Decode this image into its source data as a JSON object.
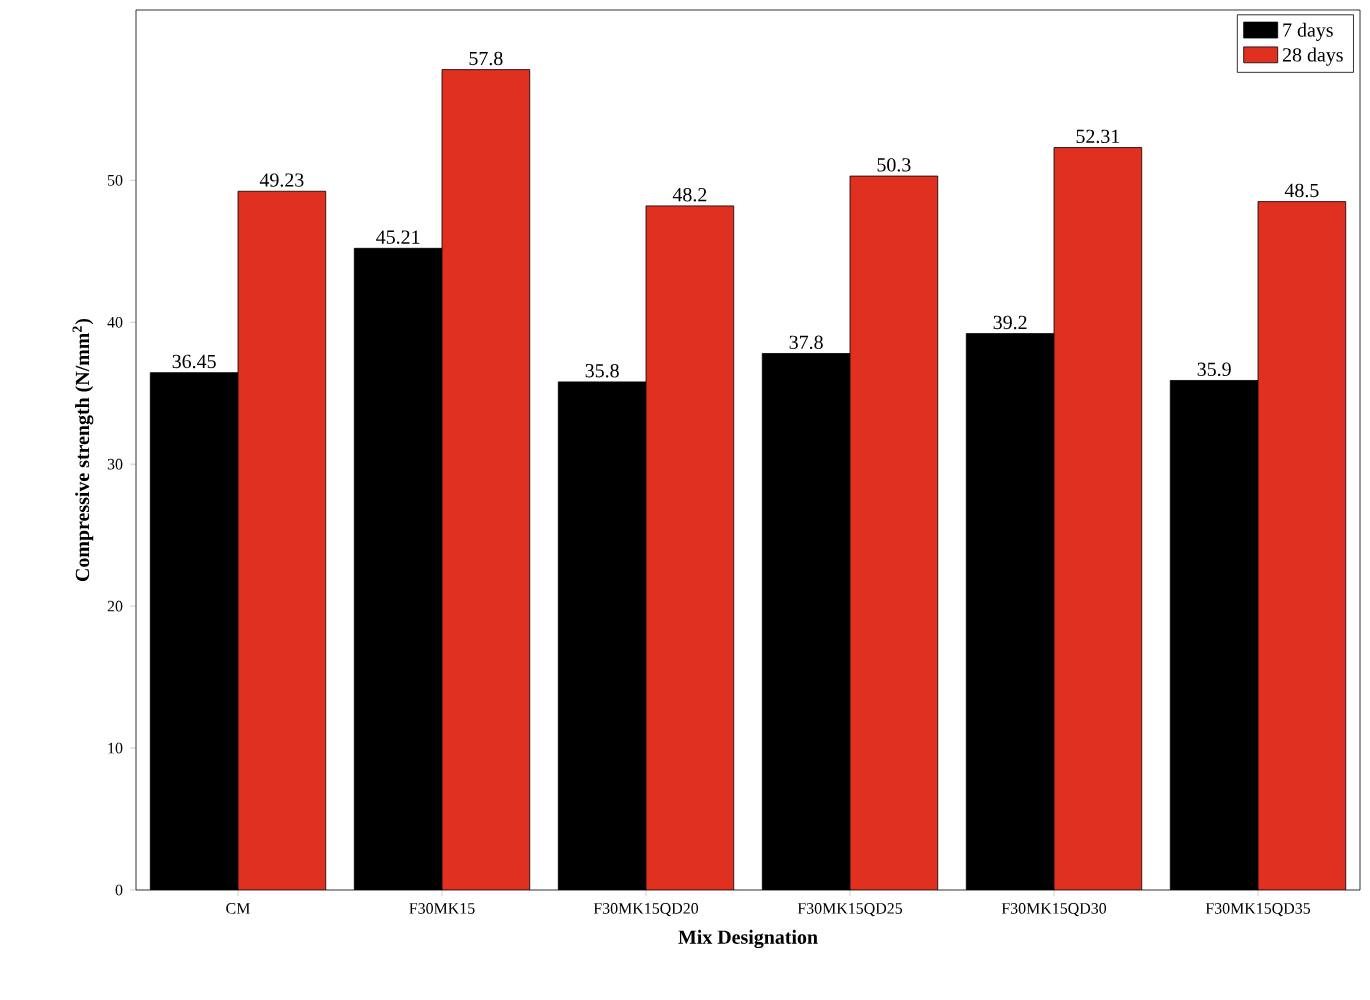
{
  "chart_data": {
    "type": "bar",
    "xlabel": "Mix Designation",
    "ylabel": "Compressive strength (N/mm$^{2}$)",
    "categories": [
      "CM",
      "F30MK15",
      "F30MK15QD20",
      "F30MK15QD25",
      "F30MK15QD30",
      "F30MK15QD35"
    ],
    "series": [
      {
        "name": "7 days",
        "color": "#000000",
        "values": [
          36.45,
          45.21,
          35.8,
          37.8,
          39.2,
          35.9
        ],
        "value_labels": [
          "36.45",
          "45.21",
          "35.8",
          "37.8",
          "39.2",
          "35.9"
        ]
      },
      {
        "name": "28 days",
        "color": "#e03020",
        "values": [
          49.23,
          57.8,
          48.2,
          50.3,
          52.31,
          48.5
        ],
        "value_labels": [
          "49.23",
          "57.8",
          "48.2",
          "50.3",
          "52.31",
          "48.5"
        ]
      }
    ],
    "ylim": [
      0,
      62
    ],
    "yticks": [
      0,
      10,
      20,
      30,
      40,
      50
    ],
    "grid": false,
    "legend": "top right"
  }
}
